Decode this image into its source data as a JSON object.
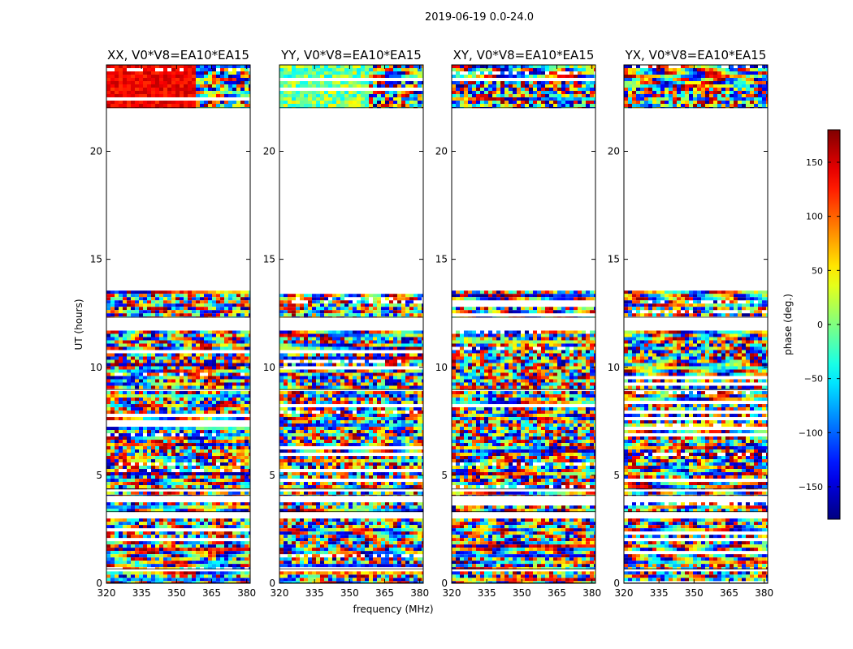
{
  "figure": {
    "suptitle": "2019-06-19 0.0-24.0",
    "xlabel": "frequency (MHz)",
    "ylabel": "UT (hours)"
  },
  "chart_data": {
    "type": "heatmap",
    "colormap": "jet",
    "xlim": [
      320,
      381.5
    ],
    "ylim": [
      0,
      24
    ],
    "xticks": [
      320,
      335,
      350,
      365,
      380
    ],
    "yticks": [
      0,
      5,
      10,
      15,
      20
    ],
    "panels": [
      {
        "title": "XX, V0*V8=EA10*EA15"
      },
      {
        "title": "YY, V0*V8=EA10*EA15"
      },
      {
        "title": "XY, V0*V8=EA10*EA15"
      },
      {
        "title": "YX, V0*V8=EA10*EA15"
      }
    ],
    "data_time_ranges_hours": [
      [
        0.0,
        0.55
      ],
      [
        0.65,
        3.0
      ],
      [
        3.3,
        3.75
      ],
      [
        4.05,
        4.25
      ],
      [
        4.35,
        8.9
      ],
      [
        8.95,
        11.7
      ],
      [
        12.3,
        13.55
      ],
      [
        22.0,
        24.0
      ]
    ],
    "colorbar": {
      "label": "phase (deg.)",
      "range": [
        -180,
        180
      ],
      "ticks": [
        150,
        100,
        50,
        0,
        -50,
        -100,
        -150
      ],
      "tick_labels": [
        "150",
        "100",
        "50",
        "0",
        "−50",
        "−100",
        "−150"
      ]
    }
  }
}
